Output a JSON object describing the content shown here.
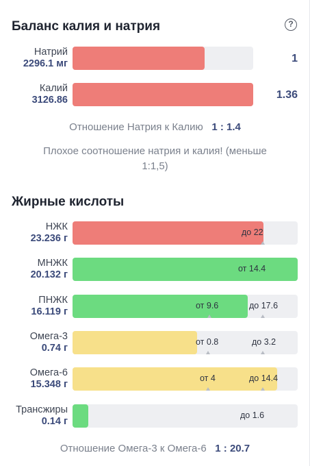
{
  "potassium_sodium": {
    "title": "Баланс калия и натрия",
    "help_icon": "question-circle-icon",
    "rows": [
      {
        "name": "Натрий",
        "value": "2296.1 мг",
        "ratio": "1",
        "fill_fraction": 0.73,
        "color": "#ee7d78"
      },
      {
        "name": "Калий",
        "value": "3126.86",
        "ratio": "1.36",
        "fill_fraction": 1.0,
        "color": "#ee7d78"
      }
    ],
    "ratio_label": "Отношение Натрия к Калию",
    "ratio_value": "1 : 1.4",
    "warning_line1": "Плохое соотношение натрия и калия! (меньше",
    "warning_line2": "1:1,5)"
  },
  "fatty_acids": {
    "title": "Жирные кислоты",
    "rows": [
      {
        "name": "НЖК",
        "value": "23.236 г",
        "fill_fraction": 0.85,
        "color": "#ee7d78",
        "mark_a": "",
        "mark_b": "до 22"
      },
      {
        "name": "МНЖК",
        "value": "20.132 г",
        "fill_fraction": 1.0,
        "color": "#6cdb80",
        "mark_a": "от 14.4",
        "mark_b": ""
      },
      {
        "name": "ПНЖК",
        "value": "16.119 г",
        "fill_fraction": 0.77,
        "color": "#6cdb80",
        "mark_a": "от 9.6",
        "mark_b": "до 17.6"
      },
      {
        "name": "Омега-3",
        "value": "0.74 г",
        "fill_fraction": 0.55,
        "color": "#f7e08a",
        "mark_a": "от 0.8",
        "mark_b": "до 3.2"
      },
      {
        "name": "Омега-6",
        "value": "15.348 г",
        "fill_fraction": 0.91,
        "color": "#f7e08a",
        "mark_a": "от 4",
        "mark_b": "до 14.4"
      },
      {
        "name": "Трансжиры",
        "value": "0.14 г",
        "fill_fraction": 0.07,
        "color": "#6cdb80",
        "mark_a": "",
        "mark_b": "до 1.6"
      }
    ],
    "ratio_label": "Отношение Омега-3 к Омега-6",
    "ratio_value": "1 : 20.7"
  }
}
